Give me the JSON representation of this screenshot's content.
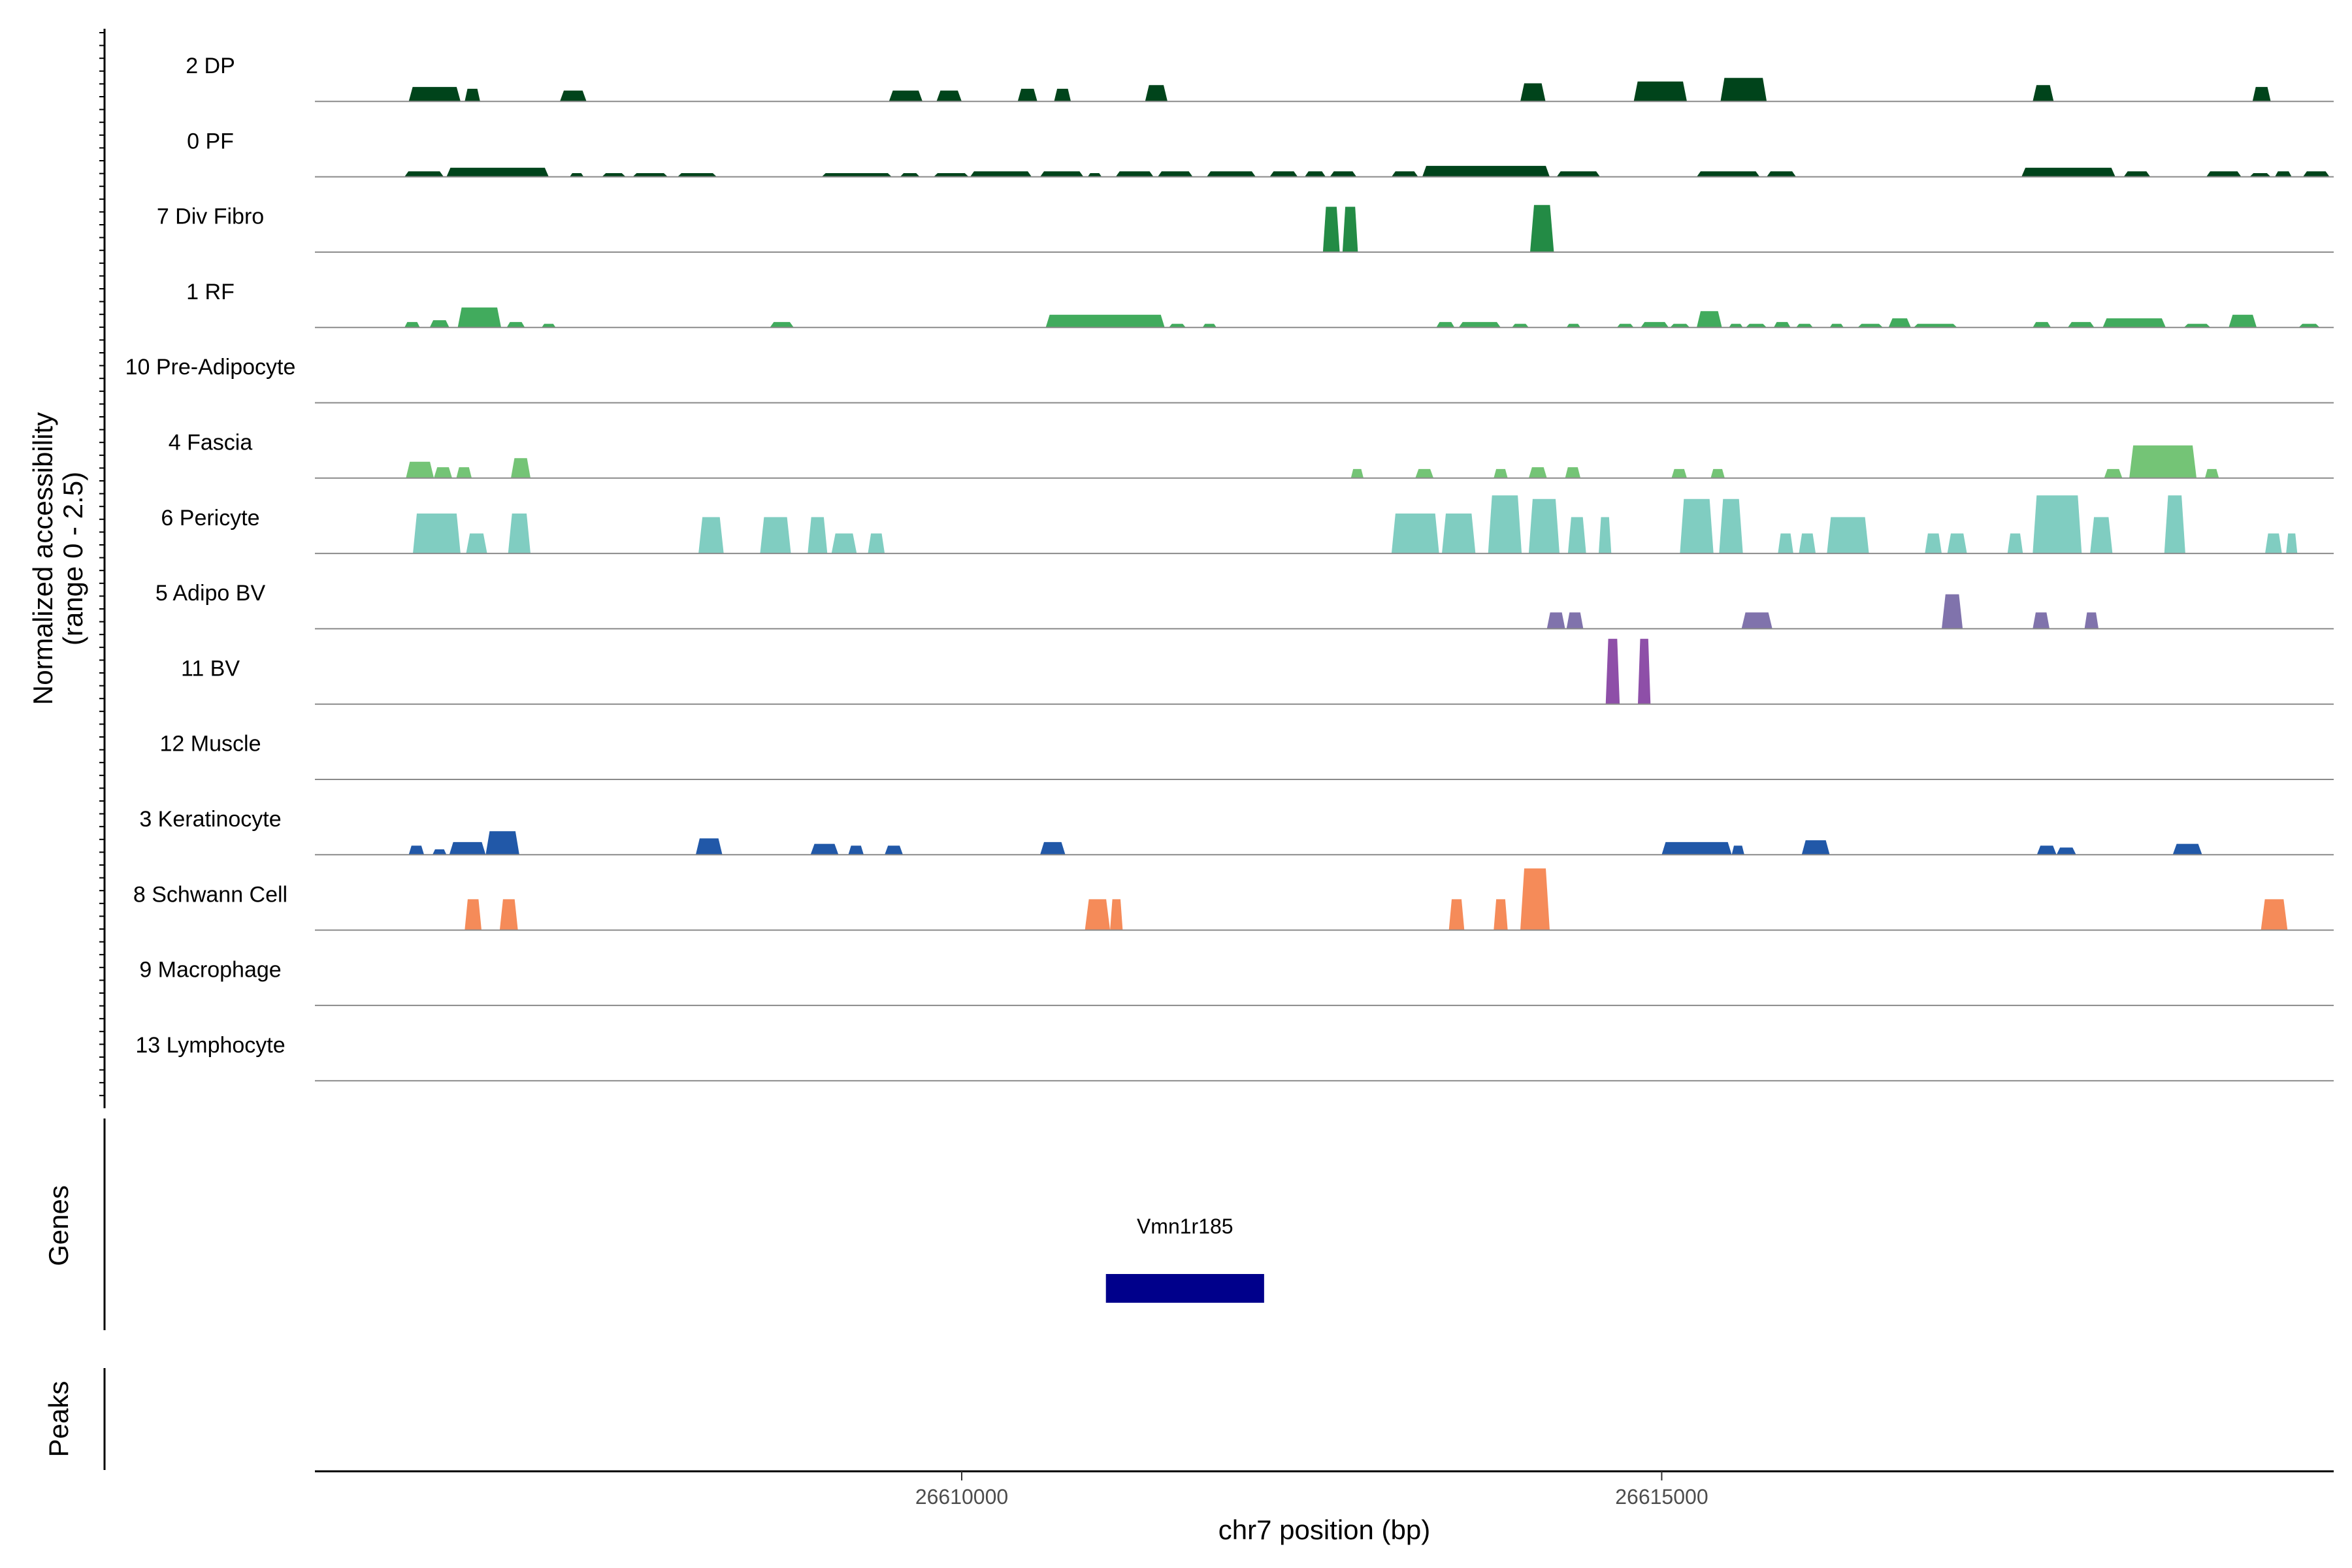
{
  "chart_data": {
    "type": "area",
    "title": "",
    "xlabel": "chr7 position (bp)",
    "ylabel_line1": "Normalized accessibility",
    "ylabel_line2": "(range 0 - 2.5)",
    "genes_label": "Genes",
    "peaks_label": "Peaks",
    "xlim": [
      26605380,
      26619800
    ],
    "ylim": [
      0,
      2.5
    ],
    "x_ticks": [
      {
        "value": 26610000,
        "label": "26610000"
      },
      {
        "value": 26615000,
        "label": "26615000"
      }
    ],
    "genes": [
      {
        "name": "Vmn1r185",
        "start": 26611030,
        "end": 26612160,
        "color": "#00008B"
      }
    ],
    "tracks": [
      {
        "label": "2 DP",
        "color": "#00441B",
        "regions": [
          [
            26606050,
            26606420,
            0.4
          ],
          [
            26606450,
            26606560,
            0.35
          ],
          [
            26607130,
            26607320,
            0.3
          ],
          [
            26609480,
            26609720,
            0.3
          ],
          [
            26609820,
            26610000,
            0.3
          ],
          [
            26610400,
            26610540,
            0.35
          ],
          [
            26610660,
            26610780,
            0.35
          ],
          [
            26611310,
            26611470,
            0.45
          ],
          [
            26613990,
            26614170,
            0.5
          ],
          [
            26614800,
            26615180,
            0.55
          ],
          [
            26615420,
            26615750,
            0.65
          ],
          [
            26617650,
            26617800,
            0.45
          ],
          [
            26619220,
            26619350,
            0.4
          ]
        ]
      },
      {
        "label": "0 PF",
        "color": "#00441B",
        "regions": [
          [
            26606020,
            26606300,
            0.15
          ],
          [
            26606320,
            26607050,
            0.25
          ],
          [
            26607200,
            26607300,
            0.1
          ],
          [
            26607430,
            26607600,
            0.1
          ],
          [
            26607650,
            26607900,
            0.1
          ],
          [
            26607970,
            26608250,
            0.1
          ],
          [
            26609000,
            26609500,
            0.1
          ],
          [
            26609560,
            26609700,
            0.1
          ],
          [
            26609800,
            26610050,
            0.1
          ],
          [
            26610060,
            26610500,
            0.15
          ],
          [
            26610560,
            26610870,
            0.15
          ],
          [
            26610900,
            26611000,
            0.1
          ],
          [
            26611100,
            26611370,
            0.15
          ],
          [
            26611400,
            26611650,
            0.15
          ],
          [
            26611750,
            26612100,
            0.15
          ],
          [
            26612200,
            26612400,
            0.15
          ],
          [
            26612450,
            26612600,
            0.15
          ],
          [
            26612630,
            26612820,
            0.15
          ],
          [
            26613070,
            26613260,
            0.15
          ],
          [
            26613290,
            26614200,
            0.3
          ],
          [
            26614250,
            26614560,
            0.15
          ],
          [
            26615250,
            26615700,
            0.15
          ],
          [
            26615750,
            26615960,
            0.15
          ],
          [
            26617570,
            26618240,
            0.25
          ],
          [
            26618300,
            26618490,
            0.15
          ],
          [
            26618890,
            26619140,
            0.15
          ],
          [
            26619200,
            26619350,
            0.1
          ],
          [
            26619380,
            26619500,
            0.15
          ],
          [
            26619580,
            26619770,
            0.15
          ]
        ]
      },
      {
        "label": "7 Div Fibro",
        "color": "#238B45",
        "regions": [
          [
            26612580,
            26612700,
            1.25
          ],
          [
            26612720,
            26612830,
            1.25
          ],
          [
            26614060,
            26614230,
            1.3
          ]
        ]
      },
      {
        "label": "1 RF",
        "color": "#41AB5D",
        "regions": [
          [
            26606020,
            26606130,
            0.15
          ],
          [
            26606200,
            26606340,
            0.2
          ],
          [
            26606400,
            26606710,
            0.55
          ],
          [
            26606750,
            26606880,
            0.15
          ],
          [
            26607000,
            26607100,
            0.1
          ],
          [
            26608630,
            26608800,
            0.15
          ],
          [
            26610600,
            26611450,
            0.35
          ],
          [
            26611480,
            26611600,
            0.1
          ],
          [
            26611720,
            26611820,
            0.1
          ],
          [
            26613390,
            26613520,
            0.15
          ],
          [
            26613550,
            26613850,
            0.15
          ],
          [
            26613930,
            26614050,
            0.1
          ],
          [
            26614320,
            26614420,
            0.1
          ],
          [
            26614680,
            26614800,
            0.1
          ],
          [
            26614850,
            26615050,
            0.15
          ],
          [
            26615060,
            26615200,
            0.1
          ],
          [
            26615250,
            26615430,
            0.45
          ],
          [
            26615480,
            26615580,
            0.1
          ],
          [
            26615600,
            26615750,
            0.1
          ],
          [
            26615800,
            26615920,
            0.15
          ],
          [
            26615960,
            26616080,
            0.1
          ],
          [
            26616200,
            26616300,
            0.1
          ],
          [
            26616400,
            26616580,
            0.1
          ],
          [
            26616620,
            26616780,
            0.25
          ],
          [
            26616800,
            26617110,
            0.1
          ],
          [
            26617650,
            26617780,
            0.15
          ],
          [
            26617900,
            26618090,
            0.15
          ],
          [
            26618150,
            26618600,
            0.25
          ],
          [
            26618730,
            26618920,
            0.1
          ],
          [
            26619050,
            26619250,
            0.35
          ],
          [
            26619550,
            26619700,
            0.1
          ]
        ]
      },
      {
        "label": "10 Pre-Adipocyte",
        "color": "#74C476",
        "regions": []
      },
      {
        "label": "4 Fascia",
        "color": "#74C476",
        "regions": [
          [
            26606030,
            26606230,
            0.45
          ],
          [
            26606230,
            26606360,
            0.3
          ],
          [
            26606390,
            26606500,
            0.3
          ],
          [
            26606780,
            26606920,
            0.55
          ],
          [
            26612780,
            26612870,
            0.25
          ],
          [
            26613240,
            26613370,
            0.25
          ],
          [
            26613800,
            26613900,
            0.25
          ],
          [
            26614050,
            26614180,
            0.3
          ],
          [
            26614310,
            26614420,
            0.3
          ],
          [
            26615070,
            26615180,
            0.25
          ],
          [
            26615350,
            26615450,
            0.25
          ],
          [
            26618160,
            26618290,
            0.25
          ],
          [
            26618340,
            26618820,
            0.9
          ],
          [
            26618880,
            26618980,
            0.25
          ]
        ]
      },
      {
        "label": "6 Pericyte",
        "color": "#80CDC1",
        "regions": [
          [
            26606080,
            26606420,
            1.1
          ],
          [
            26606460,
            26606610,
            0.55
          ],
          [
            26606760,
            26606920,
            1.1
          ],
          [
            26608120,
            26608300,
            1.0
          ],
          [
            26608560,
            26608780,
            1.0
          ],
          [
            26608900,
            26609040,
            1.0
          ],
          [
            26609070,
            26609250,
            0.55
          ],
          [
            26609330,
            26609450,
            0.55
          ],
          [
            26613070,
            26613410,
            1.1
          ],
          [
            26613430,
            26613670,
            1.1
          ],
          [
            26613760,
            26614000,
            1.6
          ],
          [
            26614050,
            26614270,
            1.5
          ],
          [
            26614330,
            26614460,
            1.0
          ],
          [
            26614550,
            26614640,
            1.0
          ],
          [
            26615130,
            26615370,
            1.5
          ],
          [
            26615410,
            26615580,
            1.5
          ],
          [
            26615830,
            26615940,
            0.55
          ],
          [
            26615980,
            26616100,
            0.55
          ],
          [
            26616180,
            26616480,
            1.0
          ],
          [
            26616880,
            26617000,
            0.55
          ],
          [
            26617040,
            26617180,
            0.55
          ],
          [
            26617470,
            26617580,
            0.55
          ],
          [
            26617650,
            26618000,
            1.6
          ],
          [
            26618060,
            26618220,
            1.0
          ],
          [
            26618590,
            26618740,
            1.6
          ],
          [
            26619310,
            26619430,
            0.55
          ],
          [
            26619460,
            26619540,
            0.55
          ]
        ]
      },
      {
        "label": "5 Adipo BV",
        "color": "#8073AC",
        "regions": []
      },
      {
        "label": "11 BV",
        "color": "#8E4FA8",
        "regions": []
      },
      {
        "label": "12 Muscle",
        "color": "#5A4A9A",
        "regions": []
      },
      {
        "label": "3 Keratinocyte",
        "color": "#2158A8",
        "regions": [
          [
            26606050,
            26606160,
            0.25
          ],
          [
            26606220,
            26606320,
            0.15
          ],
          [
            26606340,
            26606600,
            0.35
          ],
          [
            26606600,
            26606840,
            0.65
          ],
          [
            26608100,
            26608290,
            0.45
          ],
          [
            26608920,
            26609120,
            0.3
          ],
          [
            26609190,
            26609300,
            0.25
          ],
          [
            26609450,
            26609580,
            0.25
          ],
          [
            26610560,
            26610740,
            0.35
          ],
          [
            26615000,
            26615500,
            0.35
          ],
          [
            26615500,
            26615590,
            0.25
          ],
          [
            26616000,
            26616200,
            0.4
          ],
          [
            26617680,
            26617820,
            0.25
          ],
          [
            26617820,
            26617960,
            0.2
          ],
          [
            26618650,
            26618860,
            0.3
          ]
        ]
      },
      {
        "label": "8 Schwann Cell",
        "color": "#F58B59",
        "regions": [
          [
            26606450,
            26606570,
            0.85
          ],
          [
            26606700,
            26606830,
            0.85
          ],
          [
            26610880,
            26611060,
            0.85
          ],
          [
            26611060,
            26611150,
            0.85
          ],
          [
            26613480,
            26613590,
            0.85
          ],
          [
            26613800,
            26613900,
            0.85
          ],
          [
            26613990,
            26614200,
            1.7
          ],
          [
            26619280,
            26619470,
            0.85
          ]
        ]
      },
      {
        "label": "9 Macrophage",
        "color": "#E7298A",
        "regions": []
      },
      {
        "label": "13 Lymphocyte",
        "color": "#A6761D",
        "regions": []
      }
    ],
    "extra_regions": {
      "5 Adipo BV": [
        [
          26614180,
          26614310,
          0.45
        ],
        [
          26614320,
          26614440,
          0.45
        ],
        [
          26615570,
          26615790,
          0.45
        ],
        [
          26617000,
          26617150,
          0.95
        ],
        [
          26617650,
          26617770,
          0.45
        ],
        [
          26618020,
          26618120,
          0.45
        ]
      ],
      "11 BV": [
        [
          26614600,
          26614700,
          1.8
        ],
        [
          26614830,
          26614920,
          1.8
        ]
      ]
    }
  }
}
